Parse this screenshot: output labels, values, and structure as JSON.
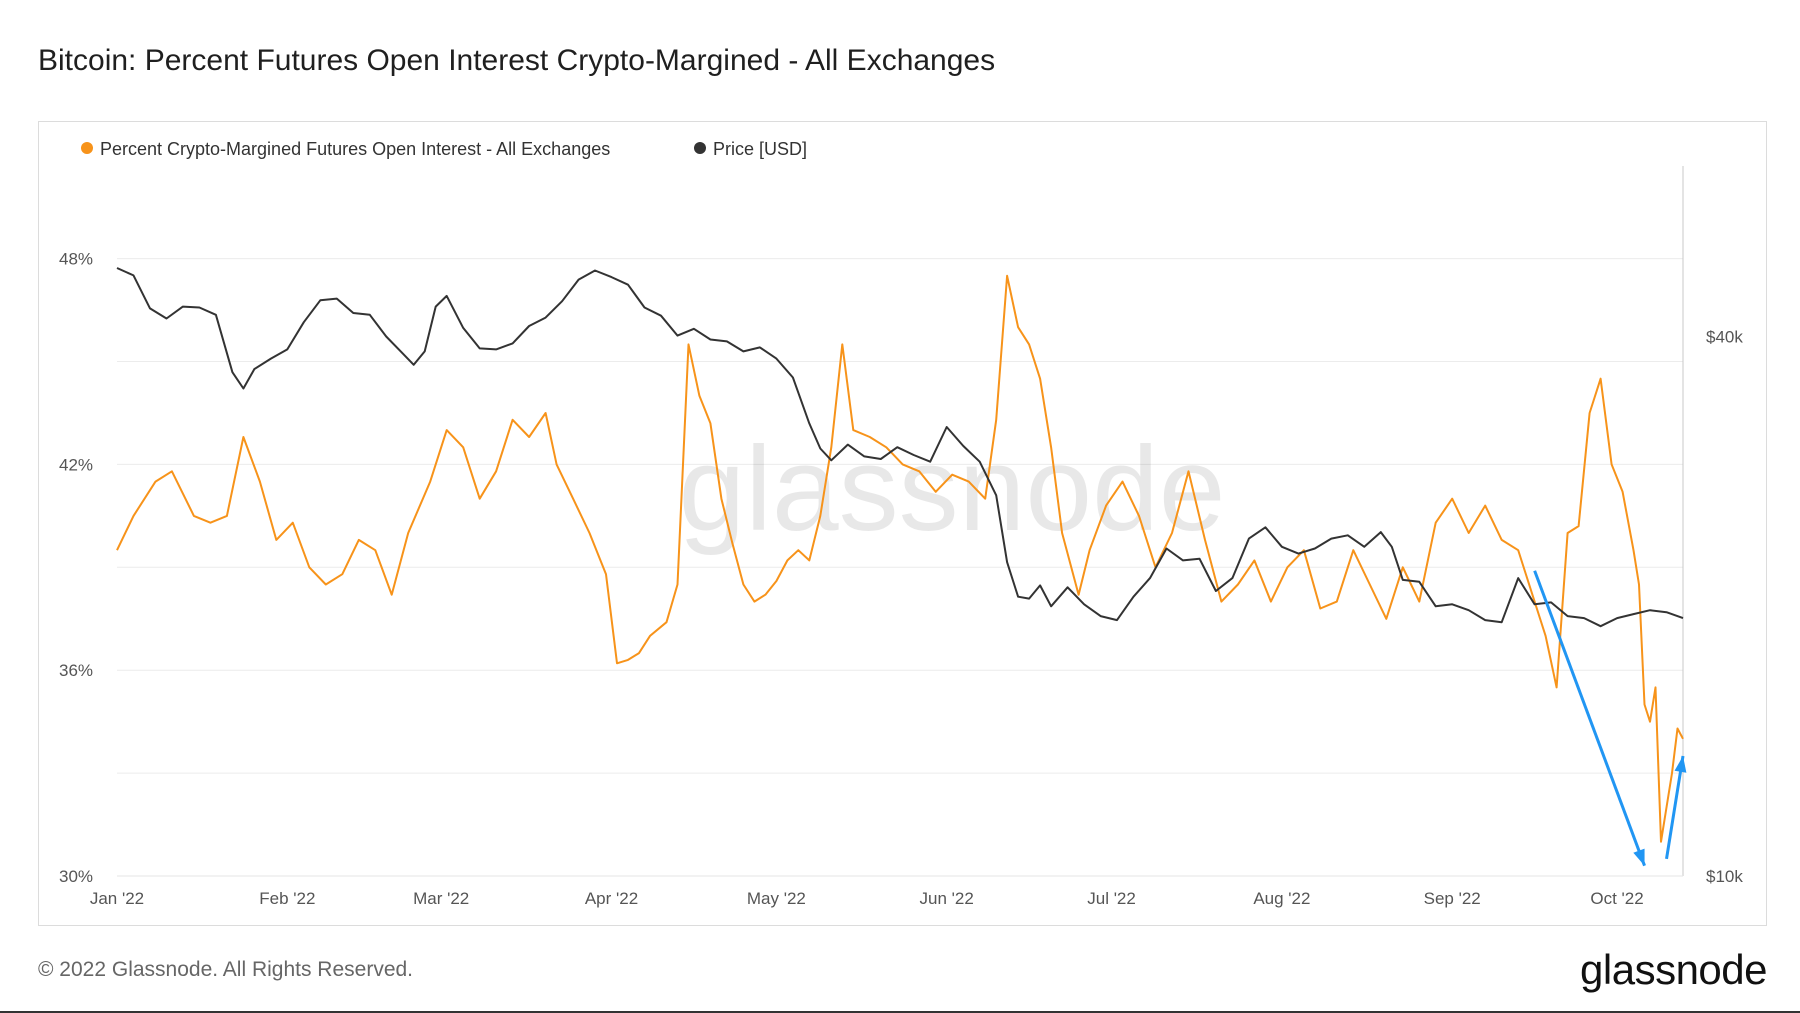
{
  "page": {
    "title": "Bitcoin: Percent Futures Open Interest Crypto-Margined - All Exchanges",
    "copyright": "© 2022 Glassnode. All Rights Reserved.",
    "logo_text": "glassnode",
    "watermark_text": "glassnode"
  },
  "colors": {
    "percent_series": "#f7931a",
    "price_series": "#333333",
    "annotation_arrow": "#2196f3",
    "grid": "#ececec"
  },
  "chart_data": {
    "type": "line",
    "title": "Bitcoin: Percent Futures Open Interest Crypto-Margined - All Exchanges",
    "x_start": "2022-01-01",
    "x_end": "2022-10-10",
    "x_ticks": [
      {
        "label": "Jan '22",
        "day": 0
      },
      {
        "label": "Feb '22",
        "day": 31
      },
      {
        "label": "Mar '22",
        "day": 59
      },
      {
        "label": "Apr '22",
        "day": 90
      },
      {
        "label": "May '22",
        "day": 120
      },
      {
        "label": "Jun '22",
        "day": 151
      },
      {
        "label": "Jul '22",
        "day": 181
      },
      {
        "label": "Aug '22",
        "day": 212
      },
      {
        "label": "Sep '22",
        "day": 243
      },
      {
        "label": "Oct '22",
        "day": 273
      }
    ],
    "x_range_days": [
      0,
      282
    ],
    "y_left": {
      "label": "",
      "ticks": [
        "30%",
        "36%",
        "42%",
        "48%"
      ],
      "tick_values": [
        30,
        36,
        42,
        48
      ],
      "range": [
        30,
        50.7
      ]
    },
    "y_right": {
      "label": "",
      "scale": "log",
      "ticks": [
        "$10k",
        "$40k"
      ],
      "tick_values": [
        10000,
        40000
      ],
      "range": [
        10000,
        62000
      ]
    },
    "legend": [
      {
        "name": "Percent Crypto-Margined Futures Open Interest - All Exchanges",
        "color": "#f7931a"
      },
      {
        "name": "Price [USD]",
        "color": "#333333"
      }
    ],
    "legend_position": "top-left",
    "series": [
      {
        "name": "Percent Crypto-Margined Futures Open Interest - All Exchanges",
        "axis": "left",
        "unit": "%",
        "points": [
          [
            0,
            39.5
          ],
          [
            3,
            40.5
          ],
          [
            7,
            41.5
          ],
          [
            10,
            41.8
          ],
          [
            14,
            40.5
          ],
          [
            17,
            40.3
          ],
          [
            20,
            40.5
          ],
          [
            23,
            42.8
          ],
          [
            26,
            41.5
          ],
          [
            29,
            39.8
          ],
          [
            32,
            40.3
          ],
          [
            35,
            39.0
          ],
          [
            38,
            38.5
          ],
          [
            41,
            38.8
          ],
          [
            44,
            39.8
          ],
          [
            47,
            39.5
          ],
          [
            50,
            38.2
          ],
          [
            53,
            40.0
          ],
          [
            57,
            41.5
          ],
          [
            60,
            43.0
          ],
          [
            63,
            42.5
          ],
          [
            66,
            41.0
          ],
          [
            69,
            41.8
          ],
          [
            72,
            43.3
          ],
          [
            75,
            42.8
          ],
          [
            78,
            43.5
          ],
          [
            80,
            42.0
          ],
          [
            83,
            41.0
          ],
          [
            86,
            40.0
          ],
          [
            89,
            38.8
          ],
          [
            91,
            36.2
          ],
          [
            93,
            36.3
          ],
          [
            95,
            36.5
          ],
          [
            97,
            37.0
          ],
          [
            100,
            37.4
          ],
          [
            102,
            38.5
          ],
          [
            104,
            45.5
          ],
          [
            106,
            44.0
          ],
          [
            108,
            43.2
          ],
          [
            110,
            41.0
          ],
          [
            112,
            39.7
          ],
          [
            114,
            38.5
          ],
          [
            116,
            38.0
          ],
          [
            118,
            38.2
          ],
          [
            120,
            38.6
          ],
          [
            122,
            39.2
          ],
          [
            124,
            39.5
          ],
          [
            126,
            39.2
          ],
          [
            128,
            40.5
          ],
          [
            130,
            42.5
          ],
          [
            132,
            45.5
          ],
          [
            134,
            43.0
          ],
          [
            137,
            42.8
          ],
          [
            140,
            42.5
          ],
          [
            143,
            42.0
          ],
          [
            146,
            41.8
          ],
          [
            149,
            41.2
          ],
          [
            152,
            41.7
          ],
          [
            155,
            41.5
          ],
          [
            158,
            41.0
          ],
          [
            160,
            43.3
          ],
          [
            162,
            47.5
          ],
          [
            164,
            46.0
          ],
          [
            166,
            45.5
          ],
          [
            168,
            44.5
          ],
          [
            170,
            42.5
          ],
          [
            172,
            40.0
          ],
          [
            175,
            38.2
          ],
          [
            177,
            39.5
          ],
          [
            180,
            40.8
          ],
          [
            183,
            41.5
          ],
          [
            186,
            40.5
          ],
          [
            189,
            39.0
          ],
          [
            192,
            40.0
          ],
          [
            195,
            41.8
          ],
          [
            198,
            39.8
          ],
          [
            201,
            38.0
          ],
          [
            204,
            38.5
          ],
          [
            207,
            39.2
          ],
          [
            210,
            38.0
          ],
          [
            213,
            39.0
          ],
          [
            216,
            39.5
          ],
          [
            219,
            37.8
          ],
          [
            222,
            38.0
          ],
          [
            225,
            39.5
          ],
          [
            228,
            38.5
          ],
          [
            231,
            37.5
          ],
          [
            234,
            39.0
          ],
          [
            237,
            38.0
          ],
          [
            240,
            40.3
          ],
          [
            243,
            41.0
          ],
          [
            246,
            40.0
          ],
          [
            249,
            40.8
          ],
          [
            252,
            39.8
          ],
          [
            255,
            39.5
          ],
          [
            258,
            38.0
          ],
          [
            260,
            37.0
          ],
          [
            262,
            35.5
          ],
          [
            264,
            40.0
          ],
          [
            266,
            40.2
          ],
          [
            268,
            43.5
          ],
          [
            270,
            44.5
          ],
          [
            272,
            42.0
          ],
          [
            274,
            41.2
          ],
          [
            276,
            39.5
          ],
          [
            277,
            38.5
          ],
          [
            278,
            35.0
          ],
          [
            279,
            34.5
          ],
          [
            280,
            35.5
          ],
          [
            281,
            31.0
          ],
          [
            282,
            32.0
          ],
          [
            283,
            33.0
          ],
          [
            284,
            34.3
          ],
          [
            285,
            34.0
          ]
        ]
      },
      {
        "name": "Price [USD]",
        "axis": "right",
        "unit": "USD",
        "points": [
          [
            0,
            47700
          ],
          [
            3,
            46800
          ],
          [
            6,
            43000
          ],
          [
            9,
            41900
          ],
          [
            12,
            43200
          ],
          [
            15,
            43100
          ],
          [
            18,
            42300
          ],
          [
            21,
            36500
          ],
          [
            23,
            35000
          ],
          [
            25,
            36800
          ],
          [
            28,
            37800
          ],
          [
            31,
            38700
          ],
          [
            34,
            41500
          ],
          [
            37,
            43900
          ],
          [
            40,
            44100
          ],
          [
            43,
            42500
          ],
          [
            46,
            42300
          ],
          [
            49,
            40000
          ],
          [
            52,
            38300
          ],
          [
            54,
            37200
          ],
          [
            56,
            38500
          ],
          [
            58,
            43200
          ],
          [
            60,
            44400
          ],
          [
            63,
            40900
          ],
          [
            66,
            38800
          ],
          [
            69,
            38700
          ],
          [
            72,
            39300
          ],
          [
            75,
            41100
          ],
          [
            78,
            42000
          ],
          [
            81,
            43800
          ],
          [
            84,
            46300
          ],
          [
            87,
            47400
          ],
          [
            90,
            46600
          ],
          [
            93,
            45700
          ],
          [
            96,
            43100
          ],
          [
            99,
            42200
          ],
          [
            102,
            40100
          ],
          [
            105,
            40800
          ],
          [
            108,
            39700
          ],
          [
            111,
            39500
          ],
          [
            114,
            38500
          ],
          [
            117,
            38900
          ],
          [
            120,
            37800
          ],
          [
            123,
            36000
          ],
          [
            126,
            32000
          ],
          [
            128,
            30000
          ],
          [
            130,
            29100
          ],
          [
            133,
            30300
          ],
          [
            136,
            29400
          ],
          [
            139,
            29200
          ],
          [
            142,
            30100
          ],
          [
            145,
            29500
          ],
          [
            148,
            29000
          ],
          [
            151,
            31700
          ],
          [
            154,
            30200
          ],
          [
            157,
            29000
          ],
          [
            160,
            26600
          ],
          [
            162,
            22400
          ],
          [
            164,
            20500
          ],
          [
            166,
            20400
          ],
          [
            168,
            21100
          ],
          [
            170,
            20000
          ],
          [
            173,
            21000
          ],
          [
            176,
            20100
          ],
          [
            179,
            19500
          ],
          [
            182,
            19300
          ],
          [
            185,
            20500
          ],
          [
            188,
            21500
          ],
          [
            191,
            23200
          ],
          [
            194,
            22500
          ],
          [
            197,
            22600
          ],
          [
            200,
            20800
          ],
          [
            203,
            21500
          ],
          [
            206,
            23800
          ],
          [
            209,
            24500
          ],
          [
            212,
            23300
          ],
          [
            215,
            22900
          ],
          [
            218,
            23200
          ],
          [
            221,
            23800
          ],
          [
            224,
            24000
          ],
          [
            227,
            23300
          ],
          [
            230,
            24200
          ],
          [
            232,
            23300
          ],
          [
            234,
            21400
          ],
          [
            237,
            21300
          ],
          [
            240,
            20000
          ],
          [
            243,
            20100
          ],
          [
            246,
            19800
          ],
          [
            249,
            19300
          ],
          [
            252,
            19200
          ],
          [
            255,
            21500
          ],
          [
            258,
            20100
          ],
          [
            261,
            20200
          ],
          [
            264,
            19500
          ],
          [
            267,
            19400
          ],
          [
            270,
            19000
          ],
          [
            273,
            19400
          ],
          [
            276,
            19600
          ],
          [
            279,
            19800
          ],
          [
            282,
            19700
          ],
          [
            285,
            19400
          ]
        ]
      }
    ],
    "annotations": [
      {
        "type": "arrow",
        "direction": "down",
        "from_day": 258,
        "from_pct": 38.9,
        "to_day": 278,
        "to_pct": 30.3
      },
      {
        "type": "arrow",
        "direction": "up",
        "from_day": 282,
        "from_pct": 30.5,
        "to_day": 285,
        "to_pct": 33.5
      }
    ]
  }
}
